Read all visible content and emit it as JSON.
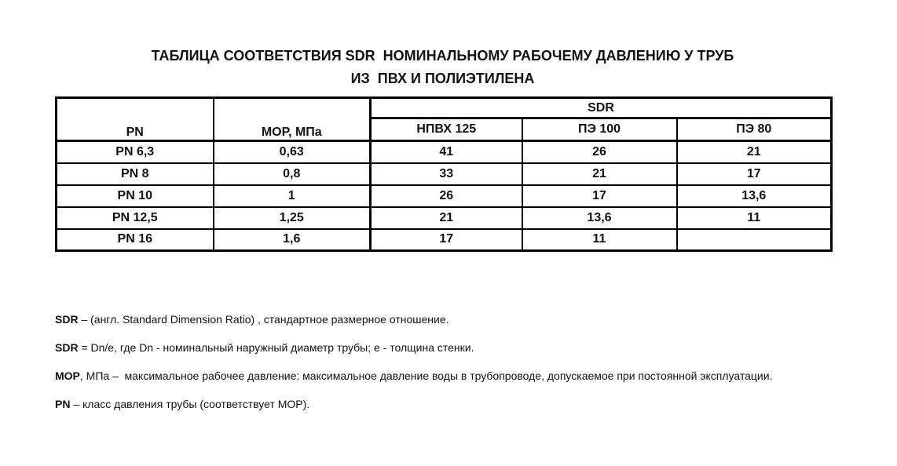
{
  "page": {
    "title_line1": "ТАБЛИЦА СООТВЕТСТВИЯ SDR  НОМИНАЛЬНОМУ РАБОЧЕМУ ДАВЛЕНИЮ У ТРУБ",
    "title_line2": "ИЗ  ПВХ И ПОЛИЭТИЛЕНА"
  },
  "table": {
    "group_header": "SDR",
    "col_pn": "PN",
    "col_mop": "МОР, МПа",
    "sub_cols": [
      "НПВХ 125",
      "ПЭ 100",
      "ПЭ 80"
    ],
    "rows": [
      [
        "PN 6,3",
        "0,63",
        "41",
        "26",
        "21"
      ],
      [
        "PN 8",
        "0,8",
        "33",
        "21",
        "17"
      ],
      [
        "PN 10",
        "1",
        "26",
        "17",
        "13,6"
      ],
      [
        "PN 12,5",
        "1,25",
        "21",
        "13,6",
        "11"
      ],
      [
        "PN 16",
        "1,6",
        "17",
        "11",
        ""
      ]
    ]
  },
  "footnotes": [
    {
      "term": "SDR",
      "rest": " – (англ. Standard Dimension Ratio) , стандартное размерное отношение."
    },
    {
      "term": "SDR",
      "rest": " = Dn/e, где Dn - номинальный наружный диаметр трубы; e - толщина стенки."
    },
    {
      "term": "МОР",
      "rest": ", МПа –  максимальное рабочее давление: максимальное давление воды в трубопроводе, допускаемое при постоянной эксплуатации."
    },
    {
      "term": "PN",
      "rest": " – класс давления трубы (соответствует МОР)."
    }
  ],
  "colors": {
    "text": "#111111",
    "border": "#000000",
    "background": "#ffffff"
  }
}
